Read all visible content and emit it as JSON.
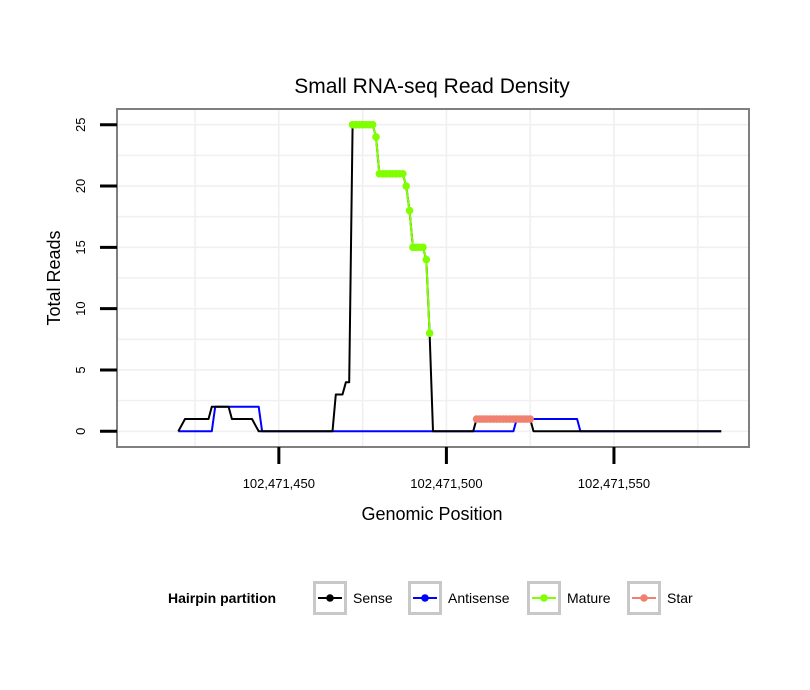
{
  "colors": {
    "sense": "#000000",
    "antisense": "#0000ff",
    "mature": "#80ff00",
    "star": "#f08070",
    "panel_border": "#7f7f7f",
    "grid": "#f0f0f0",
    "legend_key_border": "#c8c8c8"
  },
  "chart_data": {
    "type": "line",
    "title": "Small RNA-seq Read Density",
    "xlabel": "Genomic Position",
    "ylabel": "Total Reads",
    "xlim": [
      102471402,
      102471590
    ],
    "ylim": [
      -1.2,
      26.2
    ],
    "x_ticks": [
      102471450,
      102471500,
      102471550
    ],
    "x_tick_labels": [
      "102,471,450",
      "102,471,500",
      "102,471,550"
    ],
    "y_ticks": [
      0,
      5,
      10,
      15,
      20,
      25
    ],
    "y_tick_labels": [
      "0",
      "5",
      "10",
      "15",
      "20",
      "25"
    ],
    "grid": true,
    "legend": {
      "title": "Hairpin partition",
      "position": "bottom",
      "entries": [
        "Sense",
        "Antisense",
        "Mature",
        "Star"
      ]
    },
    "series": [
      {
        "name": "Sense",
        "key": "sense",
        "points": [
          [
            102471420,
            0
          ],
          [
            102471422,
            1
          ],
          [
            102471429,
            1
          ],
          [
            102471430,
            2
          ],
          [
            102471435,
            2
          ],
          [
            102471436,
            1
          ],
          [
            102471442,
            1
          ],
          [
            102471444,
            0
          ],
          [
            102471466,
            0
          ],
          [
            102471467,
            3
          ],
          [
            102471469,
            3
          ],
          [
            102471470,
            4
          ],
          [
            102471471,
            4
          ],
          [
            102471472,
            25
          ],
          [
            102471478,
            25
          ],
          [
            102471479,
            24
          ],
          [
            102471480,
            21
          ],
          [
            102471484,
            21
          ],
          [
            102471487,
            21
          ],
          [
            102471488,
            20
          ],
          [
            102471489,
            18
          ],
          [
            102471490,
            15
          ],
          [
            102471493,
            15
          ],
          [
            102471494,
            14
          ],
          [
            102471495,
            8
          ],
          [
            102471496,
            0
          ],
          [
            102471508,
            0
          ],
          [
            102471509,
            1
          ],
          [
            102471525,
            1
          ],
          [
            102471526,
            0
          ],
          [
            102471582,
            0
          ]
        ]
      },
      {
        "name": "Antisense",
        "key": "antisense",
        "points": [
          [
            102471420,
            0
          ],
          [
            102471430,
            0
          ],
          [
            102471431,
            2
          ],
          [
            102471444,
            2
          ],
          [
            102471445,
            0
          ],
          [
            102471520,
            0
          ],
          [
            102471521,
            1
          ],
          [
            102471539,
            1
          ],
          [
            102471540,
            0
          ],
          [
            102471582,
            0
          ]
        ]
      },
      {
        "name": "Mature",
        "key": "mature",
        "points": [
          [
            102471472,
            25
          ],
          [
            102471473,
            25
          ],
          [
            102471474,
            25
          ],
          [
            102471475,
            25
          ],
          [
            102471476,
            25
          ],
          [
            102471477,
            25
          ],
          [
            102471478,
            25
          ],
          [
            102471479,
            24
          ],
          [
            102471480,
            21
          ],
          [
            102471481,
            21
          ],
          [
            102471482,
            21
          ],
          [
            102471483,
            21
          ],
          [
            102471484,
            21
          ],
          [
            102471485,
            21
          ],
          [
            102471486,
            21
          ],
          [
            102471487,
            21
          ],
          [
            102471488,
            20
          ],
          [
            102471489,
            18
          ],
          [
            102471490,
            15
          ],
          [
            102471491,
            15
          ],
          [
            102471492,
            15
          ],
          [
            102471493,
            15
          ],
          [
            102471494,
            14
          ],
          [
            102471495,
            8
          ]
        ]
      },
      {
        "name": "Star",
        "key": "star",
        "points": [
          [
            102471509,
            1
          ],
          [
            102471510,
            1
          ],
          [
            102471511,
            1
          ],
          [
            102471512,
            1
          ],
          [
            102471513,
            1
          ],
          [
            102471514,
            1
          ],
          [
            102471515,
            1
          ],
          [
            102471516,
            1
          ],
          [
            102471517,
            1
          ],
          [
            102471518,
            1
          ],
          [
            102471519,
            1
          ],
          [
            102471520,
            1
          ],
          [
            102471521,
            1
          ],
          [
            102471522,
            1
          ],
          [
            102471523,
            1
          ],
          [
            102471524,
            1
          ],
          [
            102471525,
            1
          ]
        ]
      }
    ]
  }
}
